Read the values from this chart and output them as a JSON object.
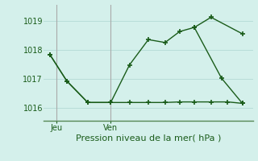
{
  "xlabel": "Pression niveau de la mer( hPa )",
  "background_color": "#d4f0eb",
  "grid_color": "#b8ddd8",
  "line_color": "#1a5c1a",
  "vline_color": "#aaaaaa",
  "ylim": [
    1015.55,
    1019.55
  ],
  "xlim": [
    0.0,
    10.0
  ],
  "yticks": [
    1016,
    1017,
    1018,
    1019
  ],
  "xtick_positions": [
    0.6,
    3.2
  ],
  "xtick_labels": [
    "Jeu",
    "Ven"
  ],
  "vline_positions": [
    0.6,
    3.2
  ],
  "series1_x": [
    0.3,
    1.1,
    2.1,
    3.2,
    4.1,
    5.0,
    5.8,
    6.5,
    7.2,
    8.0,
    9.5
  ],
  "series1_y": [
    1017.82,
    1016.92,
    1016.18,
    1016.18,
    1017.48,
    1018.35,
    1018.25,
    1018.63,
    1018.77,
    1019.12,
    1018.55
  ],
  "series2_x": [
    0.3,
    1.1,
    2.1,
    3.2,
    4.1,
    5.0,
    5.8,
    6.5,
    7.2,
    8.0,
    8.8,
    9.5
  ],
  "series2_y": [
    1017.82,
    1016.92,
    1016.18,
    1016.18,
    1016.18,
    1016.18,
    1016.18,
    1016.2,
    1016.2,
    1016.2,
    1016.2,
    1016.15
  ],
  "series3_x": [
    7.2,
    8.5,
    9.5
  ],
  "series3_y": [
    1018.77,
    1017.02,
    1016.15
  ],
  "xlabel_fontsize": 8,
  "tick_fontsize": 7
}
